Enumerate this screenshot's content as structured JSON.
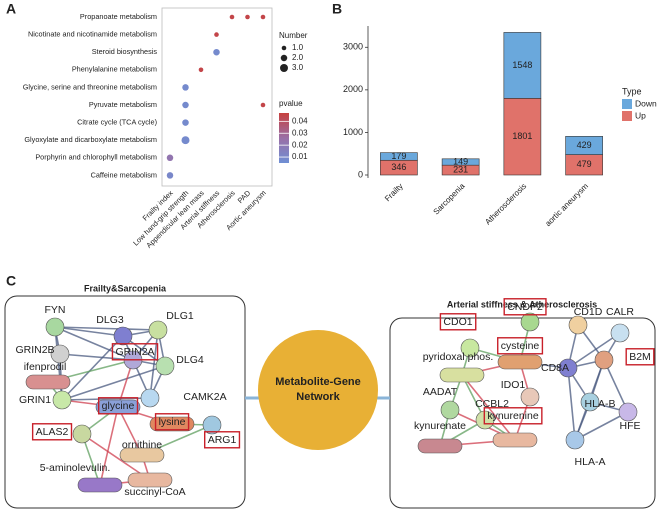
{
  "chart_data": [
    {
      "panel": "A",
      "type": "dot",
      "x_categories": [
        "Frailty index",
        "Low hand-grip strength",
        "Appendicular lean mass",
        "Arterial stiffness",
        "Atherosclerosis",
        "PAD",
        "Aortic aneurysm"
      ],
      "y_categories": [
        "Propanoate metabolism",
        "Nicotinate and nicotinamide metabolism",
        "Steroid biosynthesis",
        "Phenylalanine metabolism",
        "Glycine, serine and threonine metabolism",
        "Pyruvate metabolism",
        "Citrate cycle (TCA cycle)",
        "Glyoxylate and dicarboxylate metabolism",
        "Porphyrin and chlorophyll metabolism",
        "Caffeine metabolism"
      ],
      "points": [
        {
          "x": "Atherosclerosis",
          "y": "Propanoate metabolism",
          "size": 1,
          "pvalue": 0.045
        },
        {
          "x": "PAD",
          "y": "Propanoate metabolism",
          "size": 1,
          "pvalue": 0.045
        },
        {
          "x": "Aortic aneurysm",
          "y": "Propanoate metabolism",
          "size": 1,
          "pvalue": 0.045
        },
        {
          "x": "Arterial stiffness",
          "y": "Nicotinate and nicotinamide metabolism",
          "size": 1,
          "pvalue": 0.045
        },
        {
          "x": "Arterial stiffness",
          "y": "Steroid biosynthesis",
          "size": 2,
          "pvalue": 0.008
        },
        {
          "x": "Appendicular lean mass",
          "y": "Phenylalanine metabolism",
          "size": 1,
          "pvalue": 0.045
        },
        {
          "x": "Low hand-grip strength",
          "y": "Glycine, serine and threonine metabolism",
          "size": 2,
          "pvalue": 0.008
        },
        {
          "x": "Low hand-grip strength",
          "y": "Pyruvate metabolism",
          "size": 2,
          "pvalue": 0.008
        },
        {
          "x": "Aortic aneurysm",
          "y": "Pyruvate metabolism",
          "size": 1,
          "pvalue": 0.045
        },
        {
          "x": "Low hand-grip strength",
          "y": "Citrate cycle (TCA cycle)",
          "size": 2,
          "pvalue": 0.008
        },
        {
          "x": "Low hand-grip strength",
          "y": "Glyoxylate and dicarboxylate metabolism",
          "size": 3,
          "pvalue": 0.008
        },
        {
          "x": "Frailty index",
          "y": "Porphyrin and chlorophyll metabolism",
          "size": 2,
          "pvalue": 0.022
        },
        {
          "x": "Frailty index",
          "y": "Caffeine metabolism",
          "size": 2,
          "pvalue": 0.01
        }
      ],
      "size_legend": {
        "title": "Number",
        "values": [
          {
            "value": 1,
            "label": "1.0"
          },
          {
            "value": 2,
            "label": "2.0"
          },
          {
            "value": 3,
            "label": "3.0"
          }
        ]
      },
      "color_legend": {
        "title": "pvalue",
        "clim": [
          0.005,
          0.047
        ],
        "colors": [
          "#6f8fd4",
          "#9a6fa6",
          "#c7413f"
        ],
        "ticks": [
          0.04,
          0.03,
          0.02,
          0.01
        ]
      }
    },
    {
      "panel": "B",
      "type": "stacked_bar",
      "categories": [
        "Frailty",
        "Sarcopenia",
        "Atherosclerosis",
        "aortic aneurysm"
      ],
      "series": [
        {
          "name": "Up",
          "color": "#e0726a",
          "values": [
            346,
            231,
            1801,
            479
          ]
        },
        {
          "name": "Down",
          "color": "#6aa8dc",
          "values": [
            179,
            149,
            1548,
            429
          ]
        }
      ],
      "legend_title": "Type",
      "ylim": [
        0,
        3500
      ],
      "yticks": [
        0,
        1000,
        2000,
        3000
      ]
    }
  ],
  "network": {
    "panel": "C",
    "center": [
      "Metabolite-Gene",
      "Network"
    ],
    "left": {
      "title": "Frailty&Sarcopenia",
      "nodes": [
        {
          "label": "FYN"
        },
        {
          "label": "DLG3"
        },
        {
          "label": "DLG1"
        },
        {
          "label": "GRIN2B"
        },
        {
          "label": "ifenprodil"
        },
        {
          "label": "GRIN2A",
          "highlighted": true
        },
        {
          "label": "DLG4"
        },
        {
          "label": "CAMK2A"
        },
        {
          "label": "GRIN1"
        },
        {
          "label": "glycine",
          "highlighted": true
        },
        {
          "label": "lysine",
          "highlighted": true
        },
        {
          "label": "ALAS2",
          "highlighted": true
        },
        {
          "label": "ornithine"
        },
        {
          "label": "ARG1",
          "highlighted": true
        },
        {
          "label": "5-aminolevulin."
        },
        {
          "label": "succinyl-CoA"
        }
      ]
    },
    "right": {
      "title": "Arterial stiffness & Atherosclerosis",
      "nodes": [
        {
          "label": "CNDP2",
          "highlighted": true
        },
        {
          "label": "CDO1",
          "highlighted": true
        },
        {
          "label": "CD1D"
        },
        {
          "label": "CALR"
        },
        {
          "label": "pyridoxal phos."
        },
        {
          "label": "cysteine",
          "highlighted": true
        },
        {
          "label": "CD8A"
        },
        {
          "label": "B2M",
          "highlighted": true
        },
        {
          "label": "IDO1"
        },
        {
          "label": "AADAT"
        },
        {
          "label": "CCBL2"
        },
        {
          "label": "kynurenine",
          "highlighted": true
        },
        {
          "label": "HLA-B"
        },
        {
          "label": "HFE"
        },
        {
          "label": "kynurenate"
        },
        {
          "label": "HLA-A"
        }
      ]
    }
  }
}
